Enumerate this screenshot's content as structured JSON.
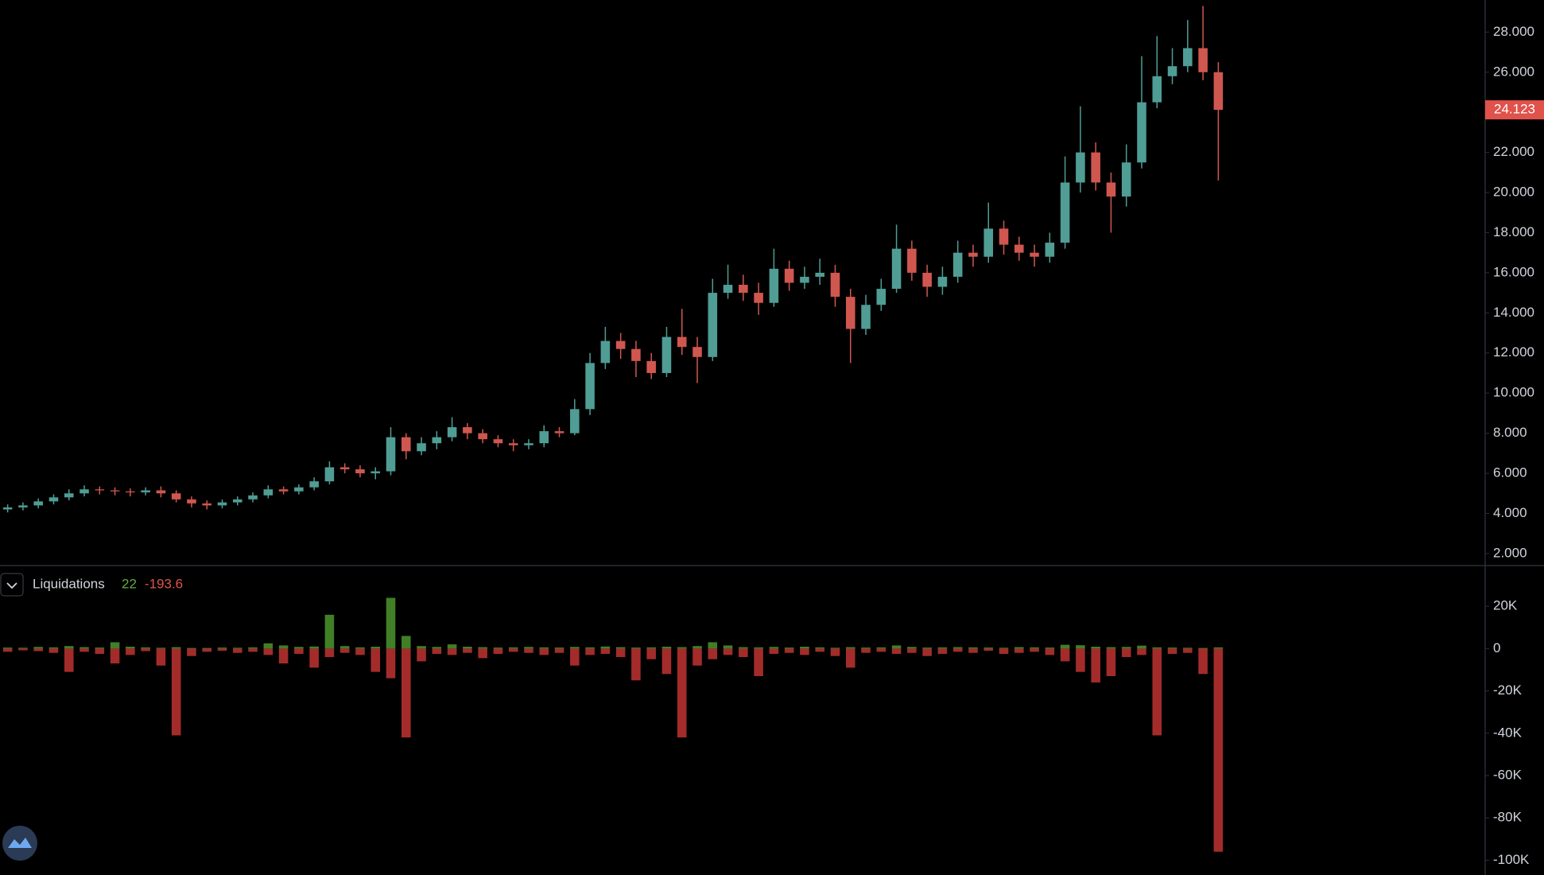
{
  "chart_data": [
    {
      "type": "candlestick",
      "up_color": "#4f9d95",
      "down_color": "#d0574f",
      "open": [
        4200,
        4300,
        4400,
        4600,
        4800,
        5000,
        5200,
        5150,
        5100,
        5050,
        5150,
        5000,
        4700,
        4500,
        4400,
        4550,
        4700,
        4900,
        5200,
        5100,
        5300,
        5600,
        6300,
        6200,
        6000,
        6100,
        7800,
        7100,
        7500,
        7800,
        8300,
        8000,
        7700,
        7500,
        7400,
        7500,
        8100,
        8000,
        9200,
        11500,
        12600,
        12200,
        11600,
        11000,
        12800,
        12300,
        11800,
        15000,
        15400,
        15000,
        14500,
        16200,
        15500,
        15800,
        16000,
        14800,
        13200,
        14400,
        15200,
        17200,
        16000,
        15300,
        15800,
        17000,
        16800,
        18200,
        17400,
        17000,
        16800,
        17500,
        20500,
        22000,
        20500,
        19800,
        21500,
        24500,
        25800,
        26300,
        27200,
        26000
      ],
      "high": [
        4450,
        4550,
        4750,
        4950,
        5200,
        5400,
        5350,
        5300,
        5250,
        5300,
        5350,
        5150,
        4850,
        4650,
        4700,
        4850,
        5050,
        5400,
        5350,
        5450,
        5800,
        6600,
        6500,
        6400,
        6300,
        8300,
        8000,
        7800,
        8100,
        8800,
        8500,
        8200,
        7900,
        7700,
        7700,
        8400,
        8300,
        9700,
        12000,
        13300,
        13000,
        12600,
        12000,
        13300,
        14200,
        12800,
        15700,
        16400,
        15900,
        15500,
        17200,
        16600,
        16300,
        16700,
        16400,
        15200,
        14900,
        15700,
        18400,
        17600,
        16400,
        16300,
        17600,
        17400,
        19500,
        18600,
        17800,
        17400,
        18000,
        21800,
        24300,
        22500,
        21000,
        22400,
        26800,
        27800,
        27200,
        28600,
        29300,
        26500
      ],
      "low": [
        4050,
        4150,
        4250,
        4450,
        4650,
        4850,
        4950,
        4900,
        4850,
        4900,
        4800,
        4550,
        4300,
        4200,
        4250,
        4400,
        4550,
        4750,
        4950,
        4950,
        5150,
        5450,
        6000,
        5800,
        5700,
        5900,
        6700,
        6900,
        7200,
        7600,
        7700,
        7500,
        7300,
        7100,
        7200,
        7300,
        7800,
        7900,
        8900,
        11200,
        11700,
        10800,
        10700,
        10800,
        11900,
        10500,
        11600,
        14700,
        14600,
        13900,
        14300,
        15100,
        15200,
        15400,
        14300,
        11500,
        12900,
        14100,
        15000,
        15600,
        14800,
        14900,
        15500,
        16300,
        16500,
        16900,
        16600,
        16300,
        16500,
        17200,
        20000,
        20100,
        18000,
        19300,
        21200,
        24200,
        25400,
        26000,
        25600,
        20600
      ],
      "close": [
        4300,
        4400,
        4600,
        4800,
        5000,
        5200,
        5150,
        5100,
        5050,
        5150,
        5000,
        4700,
        4500,
        4400,
        4550,
        4700,
        4900,
        5200,
        5100,
        5300,
        5600,
        6300,
        6200,
        6000,
        6100,
        7800,
        7100,
        7500,
        7800,
        8300,
        8000,
        7700,
        7500,
        7400,
        7500,
        8100,
        8000,
        9200,
        11500,
        12600,
        12200,
        11600,
        11000,
        12800,
        12300,
        11800,
        15000,
        15400,
        15000,
        14500,
        16200,
        15500,
        15800,
        16000,
        14800,
        13200,
        14400,
        15200,
        17200,
        16000,
        15300,
        15800,
        17000,
        16800,
        18200,
        17400,
        17000,
        16800,
        17500,
        20500,
        22000,
        20500,
        19800,
        21500,
        24500,
        25800,
        26300,
        27200,
        26000,
        24123
      ],
      "ylim": [
        1400,
        29600
      ],
      "yticks": [
        {
          "value": 28000,
          "label": "28.000"
        },
        {
          "value": 26000,
          "label": "26.000"
        },
        {
          "value": 24000,
          "label": "24.000"
        },
        {
          "value": 22000,
          "label": "22.000"
        },
        {
          "value": 20000,
          "label": "20.000"
        },
        {
          "value": 18000,
          "label": "18.000"
        },
        {
          "value": 16000,
          "label": "16.000"
        },
        {
          "value": 14000,
          "label": "14.000"
        },
        {
          "value": 12000,
          "label": "12.000"
        },
        {
          "value": 10000,
          "label": "10.000"
        },
        {
          "value": 8000,
          "label": "8.000"
        },
        {
          "value": 6000,
          "label": "6.000"
        },
        {
          "value": 4000,
          "label": "4.000"
        },
        {
          "value": 2000,
          "label": "2.000"
        }
      ],
      "last_price": {
        "value": 24123,
        "label": "24.123"
      },
      "last_price_color": "#e0524a",
      "grid": false
    },
    {
      "type": "bar",
      "title": "Liquidations",
      "summary": [
        22,
        -193.6
      ],
      "series": [
        {
          "color": "#417f26",
          "values": [
            500,
            400,
            800,
            600,
            1200,
            700,
            500,
            3000,
            900,
            600,
            400,
            700,
            300,
            300,
            500,
            400,
            600,
            2500,
            1500,
            800,
            1000,
            16000,
            1200,
            600,
            900,
            24000,
            6000,
            1200,
            800,
            2000,
            900,
            700,
            500,
            600,
            800,
            600,
            500,
            800,
            600,
            1000,
            700,
            500,
            600,
            900,
            700,
            1200,
            3000,
            1500,
            700,
            600,
            800,
            500,
            900,
            600,
            400,
            700,
            500,
            600,
            1500,
            800,
            500,
            600,
            700,
            600,
            500,
            400,
            700,
            600,
            500,
            1800,
            1600,
            900,
            700,
            800,
            1400,
            600,
            500,
            400,
            300,
            600
          ]
        },
        {
          "color": "#a32c2b",
          "values": [
            -1500,
            -800,
            -1200,
            -2000,
            -11000,
            -1500,
            -2500,
            -7000,
            -3000,
            -1200,
            -8000,
            -41000,
            -3500,
            -1500,
            -1000,
            -2000,
            -1500,
            -3000,
            -7000,
            -2500,
            -9000,
            -4000,
            -2000,
            -3000,
            -11000,
            -14000,
            -42000,
            -6000,
            -2500,
            -3000,
            -2000,
            -4500,
            -2500,
            -1500,
            -2000,
            -3000,
            -2000,
            -8000,
            -3000,
            -2500,
            -4000,
            -15000,
            -5000,
            -12000,
            -42000,
            -8000,
            -5000,
            -3000,
            -4000,
            -13000,
            -2500,
            -2000,
            -3000,
            -1500,
            -3500,
            -9000,
            -2000,
            -1500,
            -2500,
            -2000,
            -3500,
            -2500,
            -1500,
            -2000,
            -1000,
            -2500,
            -2000,
            -1500,
            -3000,
            -6000,
            -11000,
            -16000,
            -13000,
            -4000,
            -3000,
            -41000,
            -2500,
            -2000,
            -12000,
            -96000
          ]
        }
      ],
      "ylim": [
        -107000,
        39250
      ],
      "yticks": [
        {
          "value": 20000,
          "label": "20K"
        },
        0,
        {
          "value": -20000,
          "label": "-20K"
        },
        {
          "value": -40000,
          "label": "-40K"
        },
        {
          "value": -60000,
          "label": "-60K"
        },
        {
          "value": -80000,
          "label": "-80K"
        },
        {
          "value": -100000,
          "label": "-100K"
        }
      ],
      "grid": false
    }
  ]
}
